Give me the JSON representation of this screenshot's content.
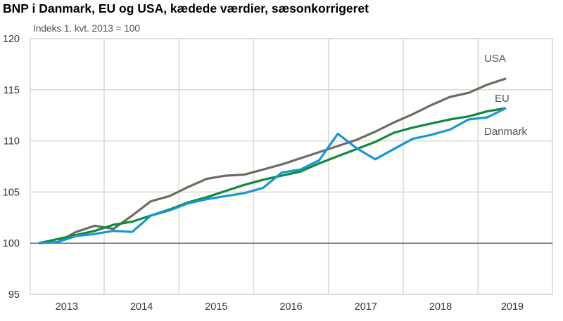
{
  "chart_data": {
    "type": "line",
    "title": "BNP i Danmark, EU og USA, kædede værdier, sæsonkorrigeret",
    "subtitle": "Indeks 1. kvt. 2013 = 100",
    "xlabel": "",
    "ylabel": "",
    "x_tick_labels": [
      "2013",
      "2014",
      "2015",
      "2016",
      "2017",
      "2018",
      "2019"
    ],
    "x": [
      "2013K1",
      "2013K2",
      "2013K3",
      "2013K4",
      "2014K1",
      "2014K2",
      "2014K3",
      "2014K4",
      "2015K1",
      "2015K2",
      "2015K3",
      "2015K4",
      "2016K1",
      "2016K2",
      "2016K3",
      "2016K4",
      "2017K1",
      "2017K2",
      "2017K3",
      "2017K4",
      "2018K1",
      "2018K2",
      "2018K3",
      "2018K4",
      "2019K1",
      "2019K2"
    ],
    "ylim": [
      95,
      120
    ],
    "y_ticks": [
      95,
      100,
      105,
      110,
      115,
      120
    ],
    "grid": true,
    "legend": "inline labels at line ends",
    "series": [
      {
        "name": "USA",
        "color": "#6e6b5f",
        "values": [
          100,
          100.1,
          101.1,
          101.7,
          101.4,
          102.7,
          104.1,
          104.6,
          105.5,
          106.3,
          106.6,
          106.7,
          107.2,
          107.7,
          108.3,
          108.9,
          109.5,
          110.1,
          110.9,
          111.8,
          112.6,
          113.5,
          114.3,
          114.7,
          115.5,
          116.1
        ]
      },
      {
        "name": "EU",
        "color": "#118a3a",
        "values": [
          100,
          100.4,
          100.8,
          101.2,
          101.8,
          102.1,
          102.7,
          103.3,
          104.0,
          104.5,
          105.1,
          105.7,
          106.2,
          106.6,
          107.0,
          107.8,
          108.5,
          109.2,
          109.9,
          110.8,
          111.3,
          111.7,
          112.1,
          112.4,
          112.9,
          113.2
        ]
      },
      {
        "name": "Danmark",
        "color": "#1a95d6",
        "values": [
          100,
          100.1,
          100.7,
          100.9,
          101.2,
          101.1,
          102.7,
          103.2,
          103.9,
          104.3,
          104.6,
          104.9,
          105.4,
          106.9,
          107.2,
          108.1,
          110.7,
          109.3,
          108.2,
          109.2,
          110.2,
          110.6,
          111.1,
          112.1,
          112.3,
          113.2
        ]
      }
    ],
    "baseline": 100
  }
}
